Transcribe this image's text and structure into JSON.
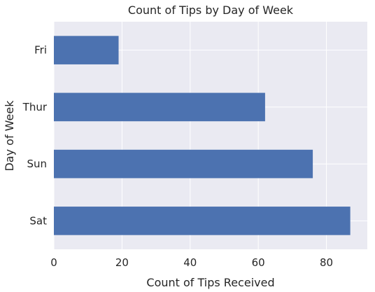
{
  "chart_data": {
    "type": "bar",
    "orientation": "horizontal",
    "title": "Count of Tips by Day of Week",
    "xlabel": "Count of Tips Received",
    "ylabel": "Day of Week",
    "categories": [
      "Sat",
      "Sun",
      "Thur",
      "Fri"
    ],
    "values": [
      87,
      76,
      62,
      19
    ],
    "xlim": [
      0,
      92
    ],
    "xticks": [
      0,
      20,
      40,
      60,
      80
    ],
    "grid": true,
    "bar_color": "#4c72b0",
    "background_color": "#eaeaf2"
  }
}
